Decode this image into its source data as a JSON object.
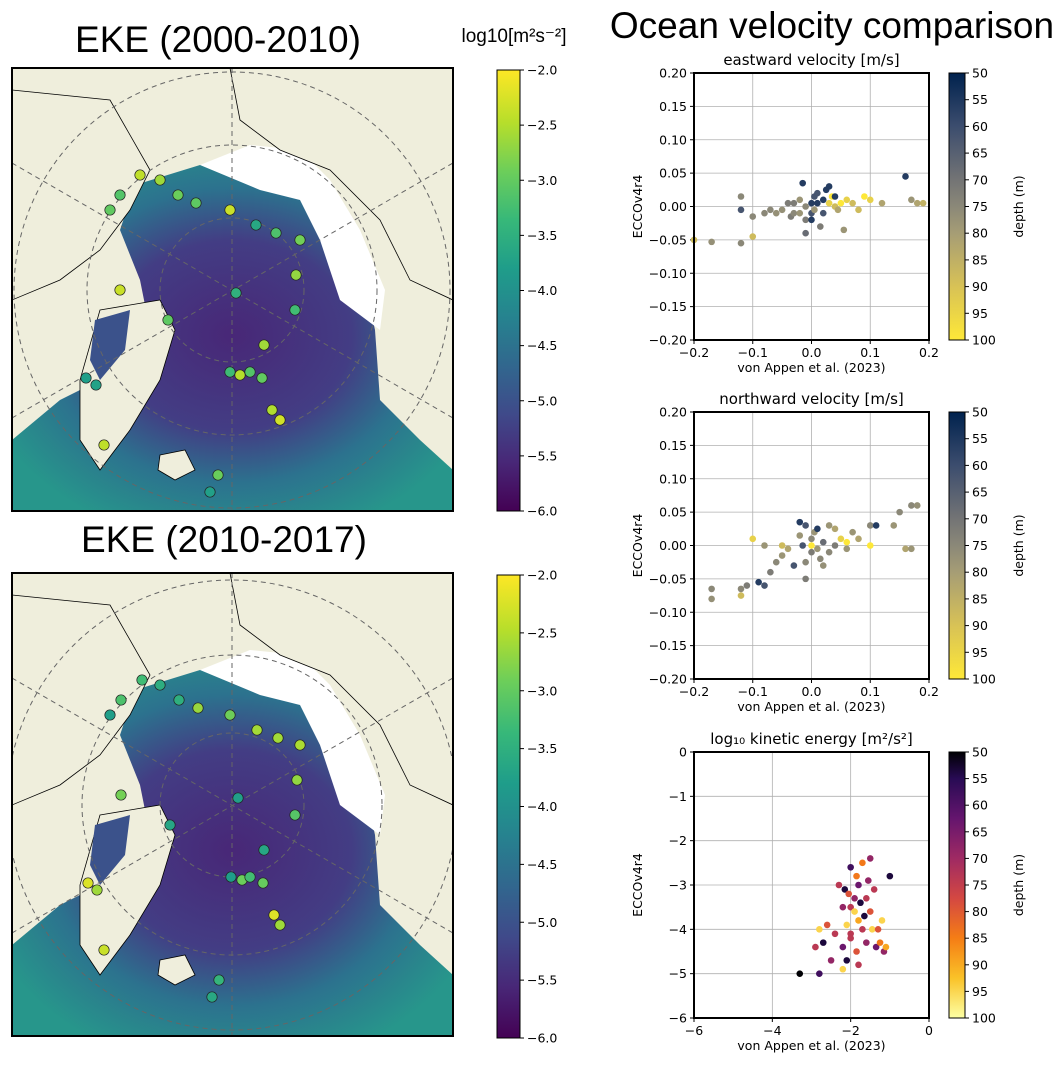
{
  "headings": {
    "map1_title": "EKE (2000-2010)",
    "map2_title": "EKE (2010-2017)",
    "units": "log10[m²s⁻²]",
    "main_title": "Ocean velocity comparison"
  },
  "map_colorbar": {
    "ticks": [
      "−2.0",
      "−2.5",
      "−3.0",
      "−3.5",
      "−4.0",
      "−4.5",
      "−5.0",
      "−5.5",
      "−6.0"
    ],
    "range": [
      -6.0,
      -2.0
    ],
    "colormap": "viridis"
  },
  "depth_colorbar": {
    "label": "depth (m)",
    "ticks": [
      "50",
      "55",
      "60",
      "65",
      "70",
      "75",
      "80",
      "85",
      "90",
      "95",
      "100"
    ],
    "range": [
      50,
      100
    ]
  },
  "colors": {
    "land": "#efeedc",
    "ice": "#ffffff",
    "ocean_low": "#440154",
    "ocean_high": "#fde725"
  },
  "chart_data": [
    {
      "type": "scatter",
      "title": "eastward velocity [m/s]",
      "xlabel": "von Appen et al. (2023)",
      "ylabel": "ECCOv4r4",
      "xlim": [
        -0.2,
        0.2
      ],
      "ylim": [
        -0.2,
        0.2
      ],
      "xticks": [
        "−0.2",
        "−0.1",
        "0.0",
        "0.1",
        "0.2"
      ],
      "yticks": [
        "0.20",
        "0.15",
        "0.10",
        "0.05",
        "0.00",
        "−0.05",
        "−0.10",
        "−0.15",
        "−0.20"
      ],
      "colormap": "cividis",
      "color_label": "depth (m)",
      "grid": true,
      "points": [
        [
          -0.2,
          -0.05,
          90
        ],
        [
          -0.17,
          -0.053,
          78
        ],
        [
          -0.12,
          -0.055,
          75
        ],
        [
          -0.12,
          0.015,
          75
        ],
        [
          -0.12,
          -0.005,
          60
        ],
        [
          -0.1,
          -0.045,
          90
        ],
        [
          -0.1,
          -0.015,
          75
        ],
        [
          -0.08,
          -0.01,
          75
        ],
        [
          -0.07,
          -0.005,
          75
        ],
        [
          -0.06,
          -0.01,
          78
        ],
        [
          -0.05,
          -0.005,
          78
        ],
        [
          -0.04,
          0.005,
          70
        ],
        [
          -0.035,
          -0.015,
          70
        ],
        [
          -0.03,
          -0.01,
          75
        ],
        [
          -0.03,
          0.005,
          70
        ],
        [
          -0.02,
          0.01,
          80
        ],
        [
          -0.02,
          -0.01,
          80
        ],
        [
          -0.015,
          0.035,
          55
        ],
        [
          -0.01,
          -0.04,
          65
        ],
        [
          -0.01,
          -0.02,
          70
        ],
        [
          -0.01,
          0.0,
          75
        ],
        [
          0.0,
          0.005,
          55
        ],
        [
          0.0,
          -0.01,
          60
        ],
        [
          0.0,
          -0.02,
          55
        ],
        [
          0.005,
          0.015,
          60
        ],
        [
          0.005,
          -0.005,
          80
        ],
        [
          0.01,
          0.02,
          60
        ],
        [
          0.01,
          0.005,
          55
        ],
        [
          0.015,
          -0.03,
          70
        ],
        [
          0.02,
          0.01,
          55
        ],
        [
          0.02,
          -0.01,
          60
        ],
        [
          0.025,
          0.025,
          55
        ],
        [
          0.03,
          0.03,
          55
        ],
        [
          0.03,
          0.005,
          95
        ],
        [
          0.035,
          0.015,
          100
        ],
        [
          0.04,
          0.0,
          90
        ],
        [
          0.04,
          0.015,
          55
        ],
        [
          0.045,
          -0.005,
          85
        ],
        [
          0.05,
          0.005,
          100
        ],
        [
          0.055,
          -0.035,
          80
        ],
        [
          0.06,
          0.01,
          95
        ],
        [
          0.07,
          0.005,
          90
        ],
        [
          0.08,
          -0.005,
          90
        ],
        [
          0.09,
          0.015,
          100
        ],
        [
          0.1,
          0.01,
          95
        ],
        [
          0.12,
          0.005,
          85
        ],
        [
          0.16,
          0.045,
          55
        ],
        [
          0.17,
          0.01,
          80
        ],
        [
          0.18,
          0.005,
          85
        ],
        [
          0.19,
          0.005,
          88
        ]
      ]
    },
    {
      "type": "scatter",
      "title": "northward velocity [m/s]",
      "xlabel": "von Appen et al. (2023)",
      "ylabel": "ECCOv4r4",
      "xlim": [
        -0.2,
        0.2
      ],
      "ylim": [
        -0.2,
        0.2
      ],
      "xticks": [
        "−0.2",
        "−0.1",
        "0.0",
        "0.1",
        "0.2"
      ],
      "yticks": [
        "0.20",
        "0.15",
        "0.10",
        "0.05",
        "0.00",
        "−0.05",
        "−0.10",
        "−0.15",
        "−0.20"
      ],
      "colormap": "cividis",
      "color_label": "depth (m)",
      "grid": true,
      "points": [
        [
          -0.17,
          -0.065,
          75
        ],
        [
          -0.17,
          -0.08,
          78
        ],
        [
          -0.12,
          -0.075,
          90
        ],
        [
          -0.12,
          -0.065,
          75
        ],
        [
          -0.11,
          -0.06,
          70
        ],
        [
          -0.1,
          0.01,
          95
        ],
        [
          -0.09,
          -0.055,
          55
        ],
        [
          -0.08,
          -0.06,
          60
        ],
        [
          -0.08,
          0.0,
          80
        ],
        [
          -0.07,
          -0.04,
          70
        ],
        [
          -0.06,
          -0.025,
          75
        ],
        [
          -0.05,
          0.0,
          90
        ],
        [
          -0.05,
          -0.015,
          80
        ],
        [
          -0.04,
          -0.005,
          85
        ],
        [
          -0.03,
          -0.03,
          60
        ],
        [
          -0.02,
          0.035,
          55
        ],
        [
          -0.02,
          0.015,
          80
        ],
        [
          -0.015,
          0.0,
          60
        ],
        [
          -0.01,
          0.03,
          60
        ],
        [
          -0.01,
          -0.05,
          70
        ],
        [
          -0.01,
          -0.025,
          75
        ],
        [
          0.0,
          0.01,
          75
        ],
        [
          0.0,
          0.0,
          100
        ],
        [
          0.0,
          -0.01,
          70
        ],
        [
          0.005,
          0.02,
          80
        ],
        [
          0.01,
          0.025,
          55
        ],
        [
          0.01,
          -0.005,
          80
        ],
        [
          0.015,
          -0.02,
          75
        ],
        [
          0.02,
          0.005,
          65
        ],
        [
          0.02,
          -0.03,
          78
        ],
        [
          0.03,
          0.03,
          80
        ],
        [
          0.03,
          -0.01,
          75
        ],
        [
          0.04,
          0.025,
          85
        ],
        [
          0.04,
          0.0,
          70
        ],
        [
          0.05,
          0.01,
          95
        ],
        [
          0.06,
          0.005,
          100
        ],
        [
          0.06,
          -0.005,
          80
        ],
        [
          0.07,
          0.02,
          80
        ],
        [
          0.08,
          0.01,
          85
        ],
        [
          0.1,
          0.03,
          75
        ],
        [
          0.11,
          0.03,
          55
        ],
        [
          0.1,
          0.0,
          100
        ],
        [
          0.14,
          0.03,
          80
        ],
        [
          0.15,
          0.05,
          75
        ],
        [
          0.16,
          -0.005,
          85
        ],
        [
          0.17,
          -0.005,
          80
        ],
        [
          0.17,
          0.06,
          75
        ],
        [
          0.18,
          0.06,
          78
        ]
      ]
    },
    {
      "type": "scatter",
      "title": "log₁₀ kinetic energy [m²/s²]",
      "xlabel": "von Appen et al. (2023)",
      "ylabel": "ECCOv4r4",
      "xlim": [
        -6,
        0
      ],
      "ylim": [
        -6,
        0
      ],
      "xticks": [
        "−6",
        "−4",
        "−2",
        "0"
      ],
      "yticks": [
        "0",
        "−1",
        "−2",
        "−3",
        "−4",
        "−5",
        "−6"
      ],
      "colormap": "inferno",
      "color_label": "depth (m)",
      "grid": true,
      "points": [
        [
          -3.3,
          -5.0,
          50
        ],
        [
          -2.8,
          -5.0,
          60
        ],
        [
          -2.7,
          -4.3,
          55
        ],
        [
          -2.9,
          -4.4,
          75
        ],
        [
          -2.8,
          -4.0,
          95
        ],
        [
          -2.6,
          -3.9,
          80
        ],
        [
          -2.5,
          -4.7,
          70
        ],
        [
          -2.4,
          -4.1,
          75
        ],
        [
          -2.3,
          -3.0,
          75
        ],
        [
          -2.2,
          -3.5,
          70
        ],
        [
          -2.2,
          -4.4,
          65
        ],
        [
          -2.15,
          -3.1,
          55
        ],
        [
          -2.1,
          -4.7,
          55
        ],
        [
          -2.1,
          -3.9,
          95
        ],
        [
          -2.05,
          -3.2,
          80
        ],
        [
          -2.0,
          -3.5,
          75
        ],
        [
          -2.0,
          -4.1,
          75
        ],
        [
          -1.9,
          -3.3,
          70
        ],
        [
          -1.9,
          -3.6,
          95
        ],
        [
          -1.85,
          -2.8,
          85
        ],
        [
          -1.85,
          -4.5,
          80
        ],
        [
          -1.8,
          -3.8,
          90
        ],
        [
          -1.8,
          -3.0,
          65
        ],
        [
          -1.75,
          -3.4,
          55
        ],
        [
          -1.7,
          -4.0,
          75
        ],
        [
          -1.7,
          -2.5,
          85
        ],
        [
          -1.65,
          -3.7,
          55
        ],
        [
          -1.6,
          -3.3,
          75
        ],
        [
          -1.6,
          -4.3,
          70
        ],
        [
          -1.55,
          -2.9,
          70
        ],
        [
          -1.5,
          -3.6,
          80
        ],
        [
          -1.5,
          -2.4,
          70
        ],
        [
          -1.45,
          -4.0,
          95
        ],
        [
          -1.4,
          -3.1,
          75
        ],
        [
          -1.35,
          -4.4,
          65
        ],
        [
          -1.3,
          -4.0,
          80
        ],
        [
          -1.25,
          -4.3,
          85
        ],
        [
          -1.2,
          -3.8,
          95
        ],
        [
          -1.15,
          -4.5,
          70
        ],
        [
          -1.1,
          -4.4,
          90
        ],
        [
          -1.0,
          -2.8,
          55
        ],
        [
          -2.0,
          -4.2,
          75
        ],
        [
          -2.2,
          -4.9,
          95
        ],
        [
          -1.8,
          -4.8,
          75
        ],
        [
          -2.0,
          -2.6,
          60
        ]
      ]
    }
  ]
}
